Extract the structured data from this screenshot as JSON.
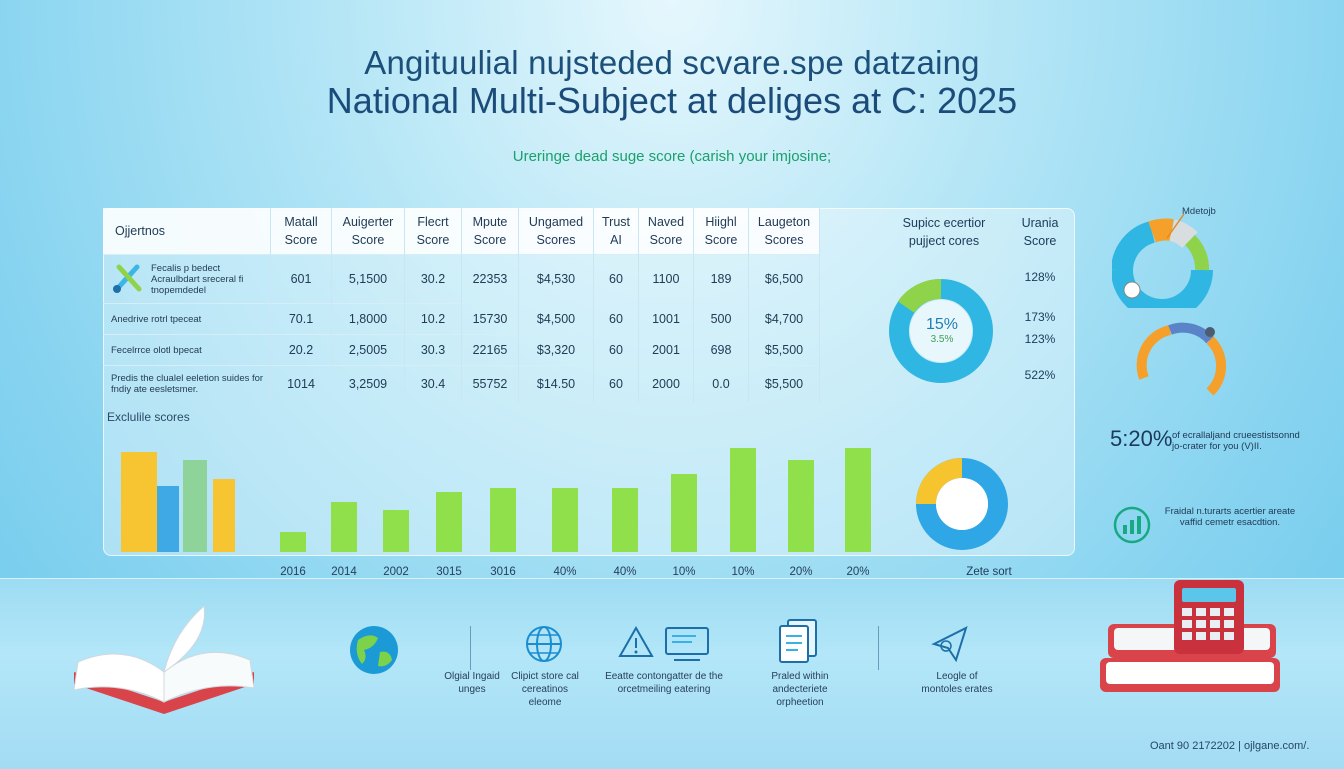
{
  "title_line1": "Angituulial nujsteded scvare.spe datzaing",
  "title_line2": "National Multi-Subject at deliges at C: 2025",
  "subtitle": "Ureringe dead suge score (carish your imjosine;",
  "table": {
    "headers": [
      "Ojjertnos",
      "Matall Score",
      "Auigerter Score",
      "Flecrt Score",
      "Mpute Score",
      "Ungamed Scores",
      "Trust AI",
      "Naved Score",
      "Hiighl Score",
      "Laugeton Scores"
    ],
    "rows": [
      {
        "label": "Fecalis p bedect Acraulbdart sreceral fi tnopemdedel",
        "values": [
          "601",
          "5,1500",
          "30.2",
          "22353",
          "$4,530",
          "60",
          "1100",
          "189",
          "$6,500"
        ]
      },
      {
        "label": "Anedrive rotrl tpeceat",
        "values": [
          "70.1",
          "1,8000",
          "10.2",
          "15730",
          "$4,500",
          "60",
          "1001",
          "500",
          "$4,700"
        ]
      },
      {
        "label": "Fecelrrce olotl bpecat",
        "values": [
          "20.2",
          "2,5005",
          "30.3",
          "22165",
          "$3,320",
          "60",
          "2001",
          "698",
          "$5,500"
        ]
      },
      {
        "label": "Predis the clualel eeletion suides for fndiy ate eesletsmer.",
        "values": [
          "1014",
          "3,2509",
          "30.4",
          "55752",
          "$14.50",
          "60",
          "2000",
          "0.0",
          "$5,500"
        ]
      }
    ]
  },
  "pie_panel": {
    "heading": "Supicc ecertior pujject cores",
    "center_big": "15%",
    "center_small": "3.5%"
  },
  "urania": {
    "heading": "Urania Score",
    "values": [
      "128%",
      "173%",
      "123%",
      "522%"
    ]
  },
  "side": {
    "top_label": "Mdetojb",
    "stat_big": "5:20%",
    "stat_text": "of ecrallaljand crueestistsonnd jo-crater for you (V)II.",
    "note_text": "Fraidal n.turarts acertier areate vaffid cemetr esacdtion."
  },
  "chart_data": {
    "type": "bar",
    "title": "Exclulile scores",
    "categories": [
      "2016",
      "2014",
      "2002",
      "3015",
      "3016",
      "40%",
      "40%",
      "10%",
      "10%",
      "20%",
      "20%"
    ],
    "series": [
      {
        "values": [
          20,
          50,
          42,
          60,
          64,
          64,
          64,
          78,
          104,
          92,
          104
        ]
      }
    ],
    "ylim": [
      0,
      110
    ],
    "legend_bars": [
      {
        "value": 100,
        "color": "#f7c531"
      },
      {
        "value": 66,
        "color": "#3fa9e6"
      },
      {
        "value": 92,
        "color": "#8ed39a"
      },
      {
        "value": 73,
        "color": "#f7c531"
      }
    ],
    "bar_color": "#8fe04a",
    "extra_label": "Zete sort"
  },
  "bottom": {
    "items": [
      {
        "icon": "globe-icon",
        "caption": "Olgial Ingaid unges"
      },
      {
        "icon": "web-icon",
        "caption": "Clipict store cal cereatinos eleome"
      },
      {
        "icon": "warning-monitor-icon",
        "caption": "Eeatte contongatter de the orcetmeiling eatering"
      },
      {
        "icon": "documents-icon",
        "caption": "Praled within andecteriete orpheetion"
      },
      {
        "icon": "paper-plane-icon",
        "caption": "Leogle of montoles erates"
      }
    ]
  },
  "footer": "Oant 90 2172202 | ojlgane.com/.",
  "colors": {
    "title": "#1b4c79",
    "subtitle": "#1aa06a",
    "green": "#8fe04a",
    "blue": "#3fa9e6",
    "yellow": "#f7c531"
  }
}
